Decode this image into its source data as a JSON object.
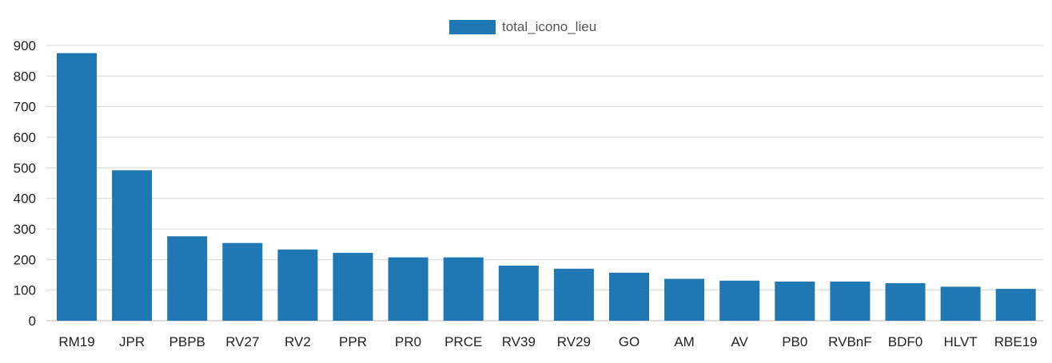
{
  "chart_data": {
    "type": "bar",
    "categories": [
      "RM19",
      "JPR",
      "PBPB",
      "RV27",
      "RV2",
      "PPR",
      "PR0",
      "PRCE",
      "RV39",
      "RV29",
      "GO",
      "AM",
      "AV",
      "PB0",
      "RVBnF",
      "BDF0",
      "HLVT",
      "RBE19"
    ],
    "series": [
      {
        "name": "total_icono_lieu",
        "color": "#1f77b4",
        "values": [
          875,
          492,
          276,
          254,
          233,
          222,
          207,
          207,
          180,
          170,
          157,
          137,
          131,
          128,
          128,
          123,
          111,
          104
        ]
      }
    ],
    "yticks": [
      0,
      100,
      200,
      300,
      400,
      500,
      600,
      700,
      800,
      900
    ],
    "ylim": [
      0,
      900
    ],
    "grid": true,
    "legend_position": "top-center"
  }
}
